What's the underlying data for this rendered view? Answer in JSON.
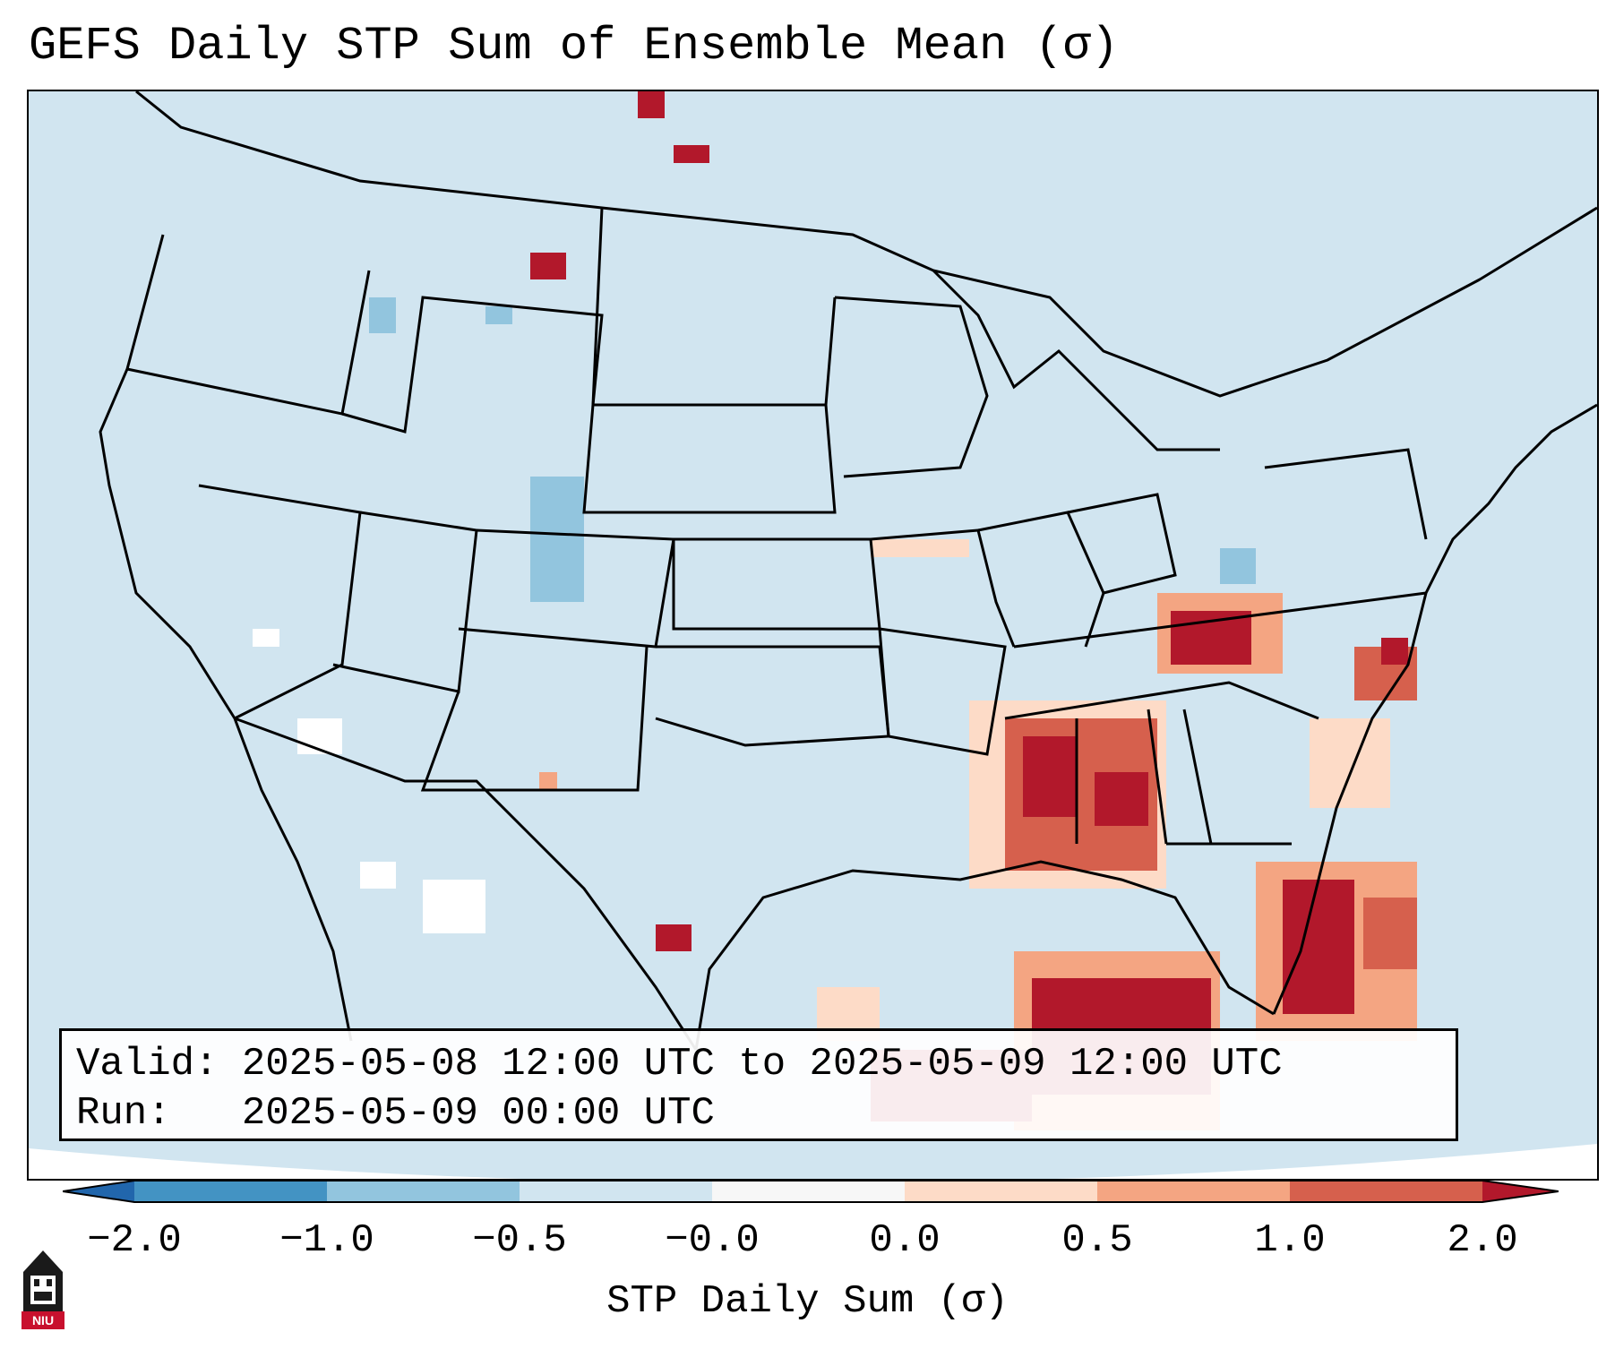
{
  "title": "GEFS Daily STP Sum of Ensemble Mean (σ)",
  "info": {
    "valid_line": "Valid: 2025-05-08 12:00 UTC to 2025-05-09 12:00 UTC",
    "run_line": "Run:   2025-05-09 00:00 UTC"
  },
  "colorbar": {
    "label": "STP Daily Sum (σ)",
    "ticks": [
      "−2.0",
      "−1.0",
      "−0.5",
      "−0.0",
      "0.0",
      "0.5",
      "1.0",
      "2.0"
    ],
    "colors": {
      "under": "#2166ac",
      "bin_m2_m1": "#4393c3",
      "bin_m1_m05": "#92c5de",
      "bin_m05_0": "#d1e5f0",
      "bin_0_0": "#f7f7f7",
      "bin_0_05": "#fddbc7",
      "bin_05_1": "#f4a582",
      "bin_1_2": "#d6604d",
      "over": "#b2182b"
    }
  },
  "map": {
    "background_color": "#d1e5f0",
    "anomaly_regions": [
      {
        "region": "Southeast US / Gulf Coast",
        "category": "above 2.0"
      },
      {
        "region": "Mid-Atlantic Coast",
        "category": "1.0 to 2.0"
      },
      {
        "region": "Florida Peninsula",
        "category": "above 2.0"
      },
      {
        "region": "Central Rockies (Colorado)",
        "category": "-1.0 to -0.5"
      }
    ]
  },
  "logo": {
    "text": "NIU"
  }
}
